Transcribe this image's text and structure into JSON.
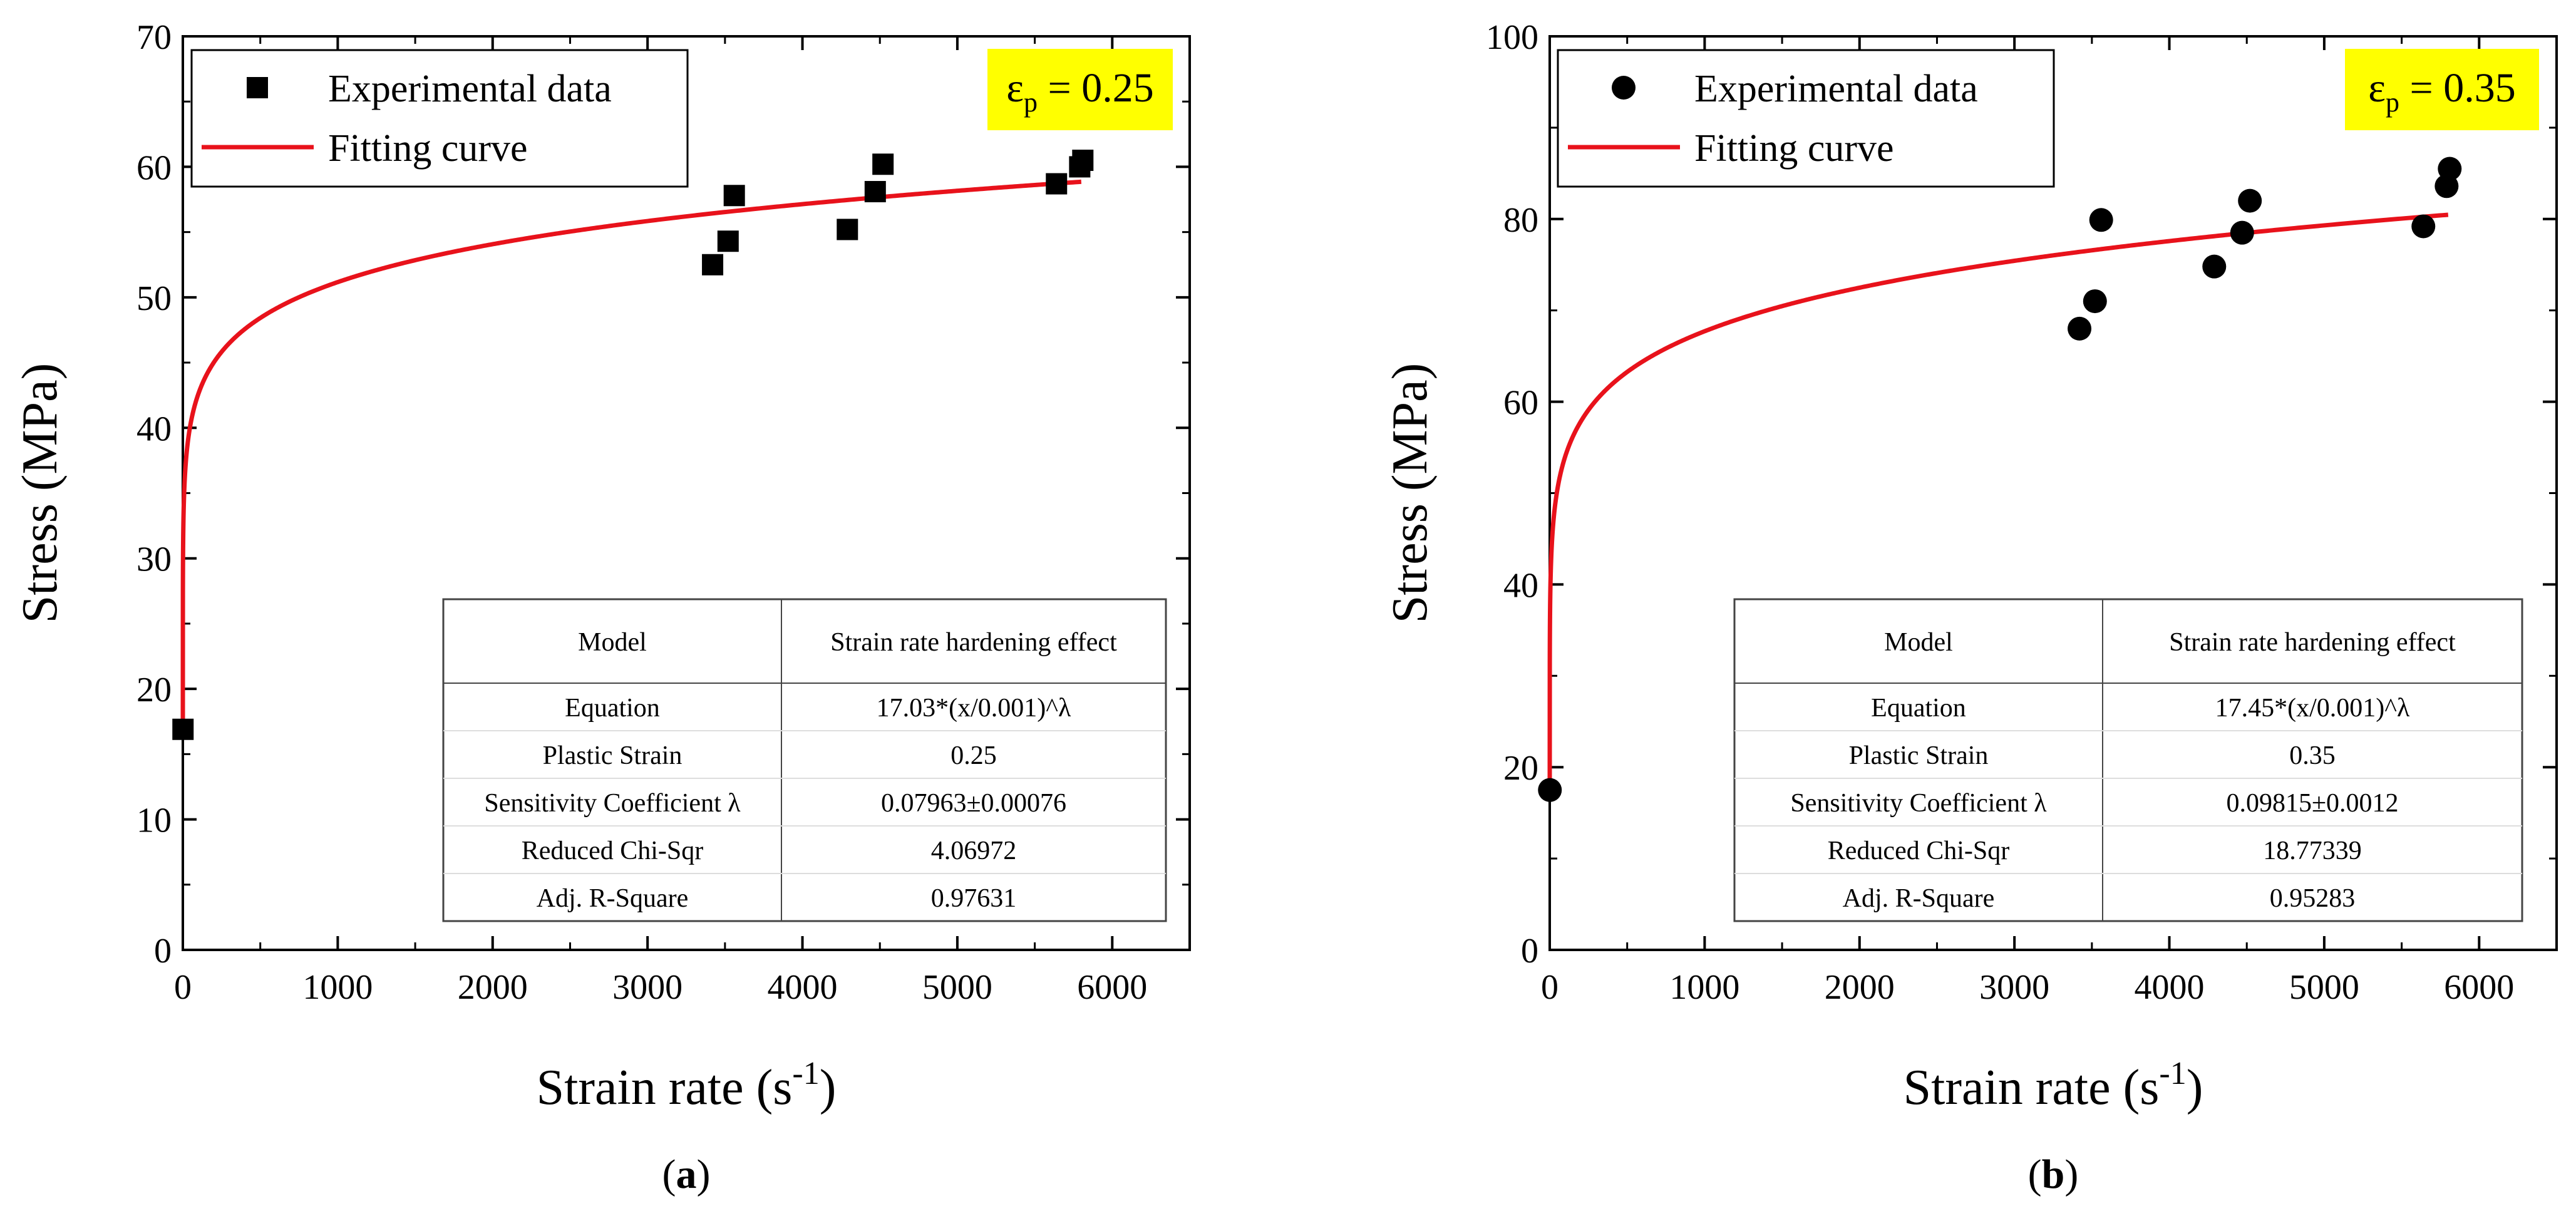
{
  "chart_data": [
    {
      "type": "scatter",
      "panel_label": "a",
      "xlabel": "Strain rate (s",
      "xlabel_sup": "-1",
      "xlabel_tail": ")",
      "ylabel": "Stress (MPa)",
      "xlim": [
        0,
        6500
      ],
      "ylim": [
        0,
        70
      ],
      "xticks": [
        0,
        1000,
        2000,
        3000,
        4000,
        5000,
        6000
      ],
      "yticks": [
        0,
        10,
        20,
        30,
        40,
        50,
        60,
        70
      ],
      "marker": "square",
      "strain_label": {
        "prefix": "ε",
        "sub": "p",
        "value": " = 0.25"
      },
      "legend": {
        "placement": "top-left",
        "marker_label": "Experimental data",
        "line_label": "Fitting curve"
      },
      "experimental": {
        "x": [
          1,
          3420,
          3520,
          3560,
          4290,
          4470,
          4520,
          5640,
          5790,
          5810
        ],
        "y": [
          16.9,
          52.5,
          54.3,
          57.8,
          55.2,
          58.1,
          60.2,
          58.7,
          60.0,
          60.5
        ]
      },
      "fit": {
        "a": 17.03,
        "lambda": 0.07963,
        "x0": 0.001,
        "x_max": 5800,
        "color": "#e8121b"
      },
      "table": {
        "header": [
          "Model",
          "Strain rate hardening effect"
        ],
        "rows": [
          [
            "Equation",
            "17.03*(x/0.001)^λ"
          ],
          [
            "Plastic Strain",
            "0.25"
          ],
          [
            "Sensitivity Coefficient λ",
            "0.07963±0.00076"
          ],
          [
            "Reduced Chi-Sqr",
            "4.06972"
          ],
          [
            "Adj. R-Square",
            "0.97631"
          ]
        ]
      }
    },
    {
      "type": "scatter",
      "panel_label": "b",
      "xlabel": "Strain rate (s",
      "xlabel_sup": "-1",
      "xlabel_tail": ")",
      "ylabel": "Stress (MPa)",
      "xlim": [
        0,
        6500
      ],
      "ylim": [
        0,
        100
      ],
      "xticks": [
        0,
        1000,
        2000,
        3000,
        4000,
        5000,
        6000
      ],
      "yticks": [
        0,
        20,
        40,
        60,
        80,
        100
      ],
      "marker": "circle",
      "strain_label": {
        "prefix": "ε",
        "sub": "p",
        "value": " = 0.35"
      },
      "legend": {
        "placement": "top-left",
        "marker_label": "Experimental data",
        "line_label": "Fitting curve"
      },
      "experimental": {
        "x": [
          1,
          3420,
          3520,
          3560,
          4290,
          4470,
          4520,
          5640,
          5790,
          5810
        ],
        "y": [
          17.5,
          68.0,
          71.0,
          79.9,
          74.8,
          78.5,
          82.0,
          79.2,
          83.6,
          85.5
        ]
      },
      "fit": {
        "a": 17.45,
        "lambda": 0.09815,
        "x0": 0.001,
        "x_max": 5800,
        "color": "#e8121b"
      },
      "table": {
        "header": [
          "Model",
          "Strain rate hardening effect"
        ],
        "rows": [
          [
            "Equation",
            "17.45*(x/0.001)^λ"
          ],
          [
            "Plastic Strain",
            "0.35"
          ],
          [
            "Sensitivity Coefficient λ",
            "0.09815±0.0012"
          ],
          [
            "Reduced Chi-Sqr",
            "18.77339"
          ],
          [
            "Adj. R-Square",
            "0.95283"
          ]
        ]
      }
    }
  ],
  "colors": {
    "fit_line": "#e8121b",
    "strain_box": "#ffff00",
    "axis": "#000000",
    "table_border": "#444444",
    "table_divider": "#dddddd"
  }
}
